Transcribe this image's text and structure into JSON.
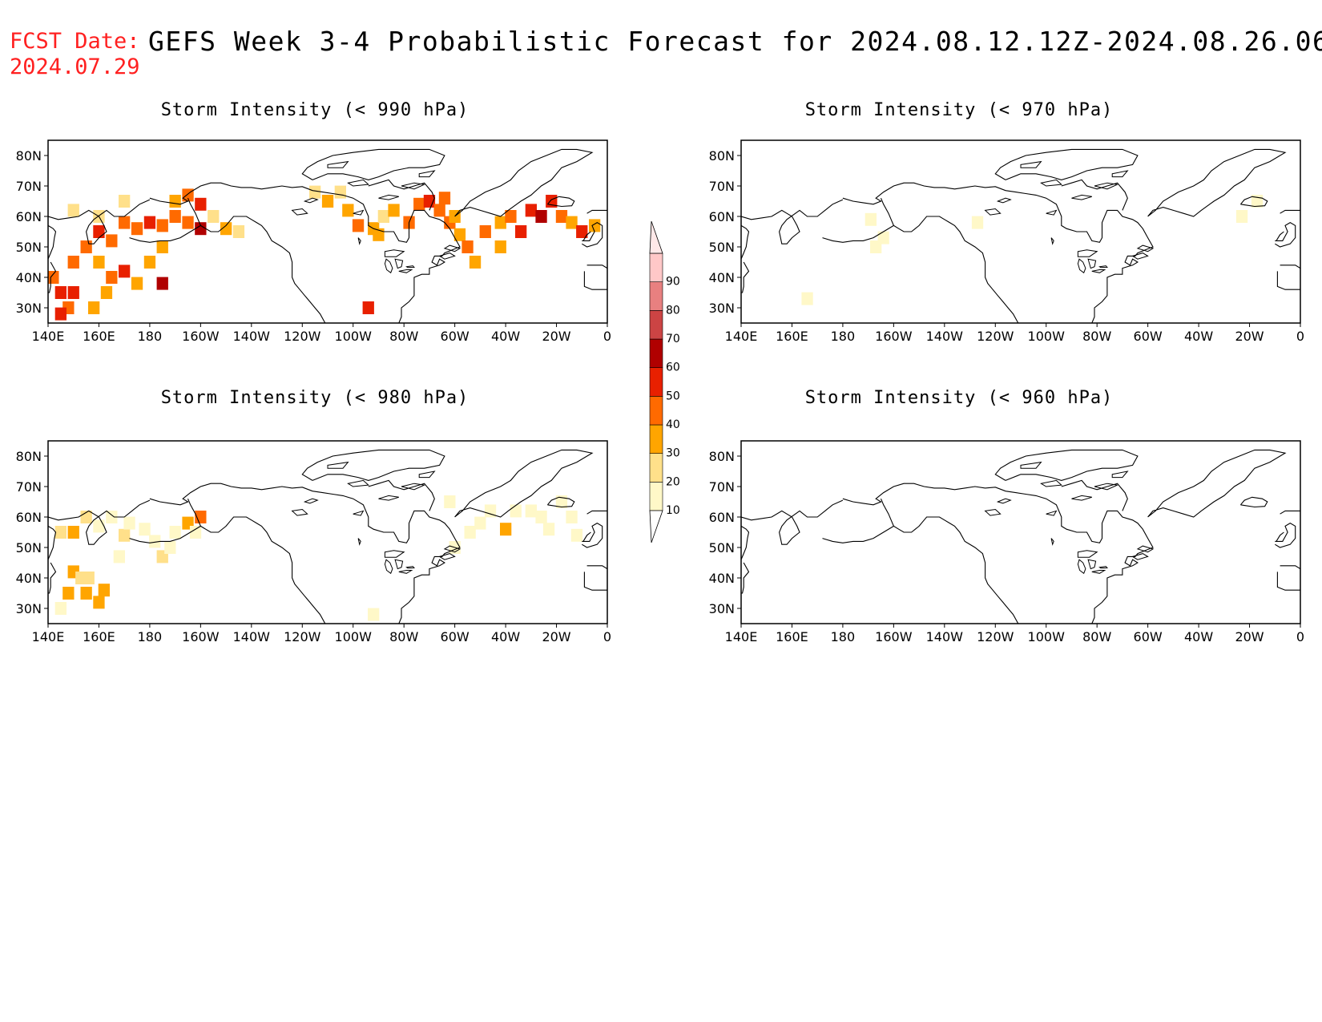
{
  "header": {
    "fcst_label": "FCST Date:",
    "fcst_date": "2024.07.29",
    "title": "GEFS Week 3-4 Probabilistic Forecast for 2024.08.12.12Z-2024.08.26.06Z"
  },
  "axes": {
    "lat_ticks": [
      "80N",
      "70N",
      "60N",
      "50N",
      "40N",
      "30N"
    ],
    "lon_ticks": [
      "140E",
      "160E",
      "180",
      "160W",
      "140W",
      "120W",
      "100W",
      "80W",
      "60W",
      "40W",
      "20W",
      "0"
    ]
  },
  "colorbar": {
    "levels": [
      "10",
      "20",
      "30",
      "40",
      "50",
      "60",
      "70",
      "80",
      "90"
    ],
    "colors": [
      "#fff8c8",
      "#ffe08a",
      "#ffa500",
      "#ff6a00",
      "#e82000",
      "#b00000",
      "#cc4444",
      "#e88080",
      "#ffc8c8"
    ]
  },
  "panels": [
    {
      "title": "Storm Intensity (< 990 hPa)",
      "cells": [
        [
          145,
          35,
          5
        ],
        [
          148,
          30,
          4
        ],
        [
          142,
          40,
          4
        ],
        [
          150,
          45,
          4
        ],
        [
          155,
          50,
          4
        ],
        [
          160,
          55,
          5
        ],
        [
          165,
          52,
          4
        ],
        [
          170,
          58,
          4
        ],
        [
          175,
          56,
          4
        ],
        [
          180,
          58,
          5
        ],
        [
          185,
          57,
          4
        ],
        [
          190,
          60,
          4
        ],
        [
          195,
          58,
          4
        ],
        [
          200,
          56,
          6
        ],
        [
          160,
          45,
          3
        ],
        [
          165,
          40,
          4
        ],
        [
          170,
          42,
          5
        ],
        [
          175,
          38,
          3
        ],
        [
          180,
          45,
          3
        ],
        [
          185,
          38,
          6
        ],
        [
          150,
          35,
          5
        ],
        [
          145,
          28,
          5
        ],
        [
          158,
          30,
          3
        ],
        [
          163,
          35,
          3
        ],
        [
          190,
          65,
          3
        ],
        [
          195,
          67,
          4
        ],
        [
          200,
          64,
          5
        ],
        [
          205,
          60,
          2
        ],
        [
          210,
          56,
          3
        ],
        [
          215,
          55,
          2
        ],
        [
          160,
          60,
          2
        ],
        [
          170,
          65,
          2
        ],
        [
          150,
          62,
          2
        ],
        [
          185,
          50,
          3
        ],
        [
          245,
          68,
          2
        ],
        [
          250,
          65,
          3
        ],
        [
          255,
          68,
          2
        ],
        [
          258,
          62,
          3
        ],
        [
          262,
          57,
          4
        ],
        [
          268,
          56,
          3
        ],
        [
          272,
          60,
          2
        ],
        [
          276,
          62,
          3
        ],
        [
          282,
          58,
          4
        ],
        [
          286,
          64,
          4
        ],
        [
          290,
          65,
          5
        ],
        [
          294,
          62,
          4
        ],
        [
          298,
          58,
          4
        ],
        [
          302,
          54,
          3
        ],
        [
          305,
          50,
          4
        ],
        [
          308,
          45,
          3
        ],
        [
          312,
          55,
          4
        ],
        [
          318,
          58,
          3
        ],
        [
          322,
          60,
          4
        ],
        [
          326,
          55,
          5
        ],
        [
          330,
          62,
          5
        ],
        [
          334,
          60,
          6
        ],
        [
          338,
          65,
          5
        ],
        [
          342,
          60,
          4
        ],
        [
          346,
          58,
          3
        ],
        [
          350,
          55,
          5
        ],
        [
          355,
          57,
          3
        ],
        [
          300,
          60,
          3
        ],
        [
          296,
          66,
          4
        ],
        [
          270,
          54,
          3
        ],
        [
          266,
          30,
          5
        ],
        [
          318,
          50,
          3
        ]
      ]
    },
    {
      "title": "Storm Intensity (< 970 hPa)",
      "cells": [
        [
          191,
          59,
          1
        ],
        [
          193,
          50,
          1
        ],
        [
          196,
          53,
          1
        ],
        [
          233,
          58,
          1
        ],
        [
          337,
          60,
          1
        ],
        [
          343,
          65,
          1
        ],
        [
          166,
          33,
          1
        ]
      ]
    },
    {
      "title": "Storm Intensity (< 980 hPa)",
      "cells": [
        [
          145,
          30,
          1
        ],
        [
          148,
          35,
          3
        ],
        [
          150,
          42,
          3
        ],
        [
          153,
          40,
          2
        ],
        [
          155,
          35,
          3
        ],
        [
          160,
          32,
          3
        ],
        [
          162,
          36,
          3
        ],
        [
          150,
          55,
          3
        ],
        [
          155,
          60,
          2
        ],
        [
          160,
          57,
          1
        ],
        [
          165,
          60,
          1
        ],
        [
          170,
          54,
          2
        ],
        [
          172,
          58,
          1
        ],
        [
          178,
          56,
          1
        ],
        [
          182,
          52,
          1
        ],
        [
          185,
          47,
          2
        ],
        [
          188,
          50,
          1
        ],
        [
          190,
          55,
          1
        ],
        [
          195,
          58,
          3
        ],
        [
          200,
          60,
          4
        ],
        [
          198,
          55,
          1
        ],
        [
          168,
          47,
          1
        ],
        [
          145,
          55,
          2
        ],
        [
          156,
          40,
          2
        ],
        [
          300,
          50,
          1
        ],
        [
          306,
          55,
          1
        ],
        [
          310,
          58,
          1
        ],
        [
          314,
          62,
          1
        ],
        [
          320,
          56,
          3
        ],
        [
          324,
          62,
          1
        ],
        [
          330,
          62,
          1
        ],
        [
          334,
          60,
          1
        ],
        [
          337,
          56,
          1
        ],
        [
          342,
          65,
          1
        ],
        [
          346,
          60,
          1
        ],
        [
          348,
          54,
          1
        ],
        [
          298,
          65,
          1
        ],
        [
          268,
          28,
          1
        ]
      ]
    },
    {
      "title": "Storm Intensity (< 960 hPa)",
      "cells": []
    }
  ]
}
